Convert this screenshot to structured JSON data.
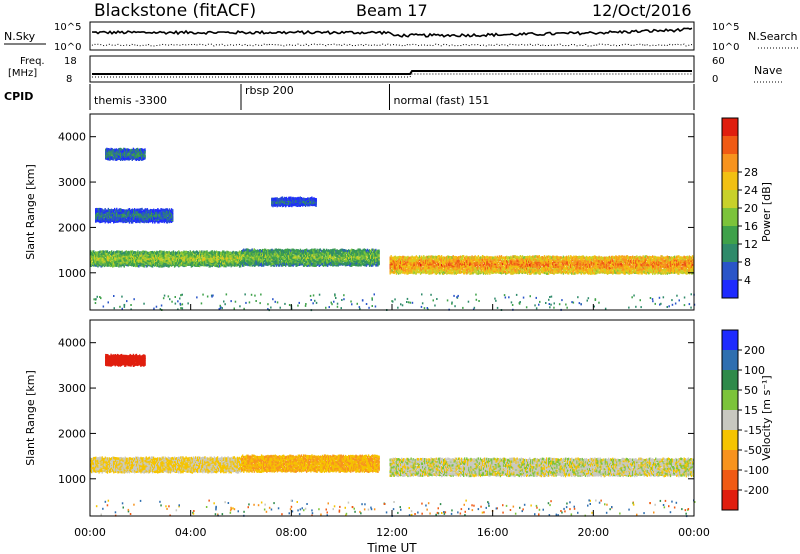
{
  "header": {
    "site": "Blackstone (fitACF)",
    "beam": "Beam 17",
    "date": "12/Oct/2016"
  },
  "noise_panel": {
    "left_label": "N.Sky",
    "right_label": "N.Search",
    "left_ticks": [
      "10^5",
      "10^0"
    ],
    "right_ticks": [
      "10^5",
      "10^0"
    ]
  },
  "freq_panel": {
    "left_label_1": "Freq.",
    "left_label_2": "[MHz]",
    "right_label": "Nave",
    "left_ticks": [
      "18",
      "8"
    ],
    "right_ticks": [
      "60",
      "0"
    ]
  },
  "cpid_panel": {
    "label": "CPID",
    "segments": [
      {
        "start_h": 0,
        "text": "themis -3300"
      },
      {
        "start_h": 6,
        "text": "rbsp 200"
      },
      {
        "start_h": 11.9,
        "text": "normal (fast) 151"
      }
    ]
  },
  "time_axis": {
    "label": "Time UT",
    "ticks": [
      "00:00",
      "04:00",
      "08:00",
      "12:00",
      "16:00",
      "20:00",
      "00:00"
    ]
  },
  "chart_data": [
    {
      "type": "heatmap",
      "panel": "power",
      "ylabel": "Slant Range [km]",
      "yticks": [
        1000,
        2000,
        3000,
        4000
      ],
      "ylim": [
        180,
        4500
      ],
      "xlim_hours": [
        0,
        24
      ],
      "colorbar_label": "Power [dB]",
      "colorbar_ticks": [
        "4",
        "8",
        "12",
        "16",
        "20",
        "24",
        "28"
      ],
      "colorbar_colors": [
        "#1f2bff",
        "#2a55c8",
        "#2f8a6a",
        "#3fa14a",
        "#7cc33a",
        "#c8d12a",
        "#f2c012",
        "#f7931e",
        "#f05a14",
        "#e01e0e"
      ],
      "bands": [
        {
          "t0": 0.0,
          "t1": 6.0,
          "center_km": 1350,
          "width_km": 320,
          "level": 14
        },
        {
          "t0": 6.0,
          "t1": 11.5,
          "center_km": 1380,
          "width_km": 350,
          "level": 12
        },
        {
          "t0": 11.9,
          "t1": 24.0,
          "center_km": 1220,
          "width_km": 380,
          "level": 22
        },
        {
          "t0": 0.2,
          "t1": 3.3,
          "center_km": 2300,
          "width_km": 280,
          "level": 6
        },
        {
          "t0": 0.6,
          "t1": 2.2,
          "center_km": 3650,
          "width_km": 220,
          "level": 7
        },
        {
          "t0": 7.2,
          "t1": 9.0,
          "center_km": 2600,
          "width_km": 160,
          "level": 5
        }
      ]
    },
    {
      "type": "heatmap",
      "panel": "velocity",
      "ylabel": "Slant Range [km]",
      "yticks": [
        1000,
        2000,
        3000,
        4000
      ],
      "ylim": [
        180,
        4500
      ],
      "xlim_hours": [
        0,
        24
      ],
      "colorbar_label": "Velocity [m s⁻¹]",
      "colorbar_ticks": [
        "200",
        "100",
        "50",
        "15",
        "-15",
        "-50",
        "-100",
        "-200"
      ],
      "colorbar_colors": [
        "#1f2bff",
        "#2f6fb0",
        "#2f8a4a",
        "#7cc33a",
        "#c8c8c0",
        "#f5c400",
        "#f7931e",
        "#f05a14",
        "#e01e0e"
      ],
      "bands": [
        {
          "t0": 0.0,
          "t1": 6.0,
          "center_km": 1350,
          "width_km": 320,
          "value": -10
        },
        {
          "t0": 6.0,
          "t1": 11.5,
          "center_km": 1380,
          "width_km": 350,
          "value": -30
        },
        {
          "t0": 11.9,
          "t1": 24.0,
          "center_km": 1300,
          "width_km": 380,
          "value": 0
        },
        {
          "t0": 0.6,
          "t1": 2.2,
          "center_km": 3650,
          "width_km": 220,
          "value": -200
        }
      ]
    }
  ]
}
